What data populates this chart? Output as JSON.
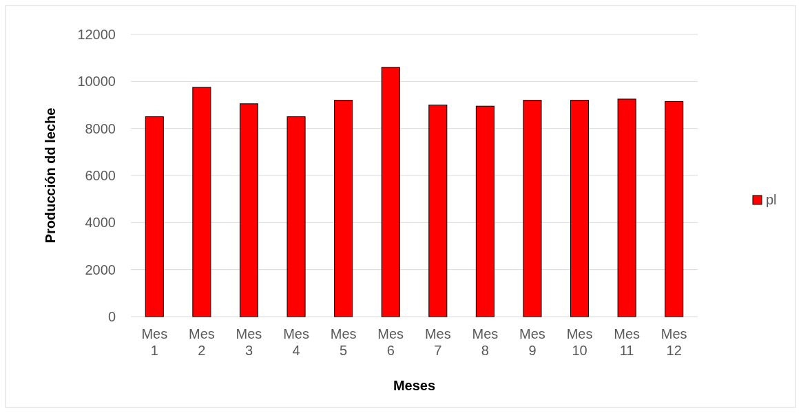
{
  "chart_data": {
    "type": "bar",
    "xlabel": "Meses",
    "ylabel": "Producción dd leche",
    "categories": [
      "Mes 1",
      "Mes 2",
      "Mes 3",
      "Mes 4",
      "Mes 5",
      "Mes 6",
      "Mes 7",
      "Mes 8",
      "Mes 9",
      "Mes 10",
      "Mes 11",
      "Mes 12"
    ],
    "series": [
      {
        "name": "pl",
        "color": "#ff0000",
        "values": [
          8500,
          9750,
          9050,
          8500,
          9200,
          10600,
          9000,
          8950,
          9200,
          9200,
          9250,
          9150
        ]
      }
    ],
    "ylim": [
      0,
      12000
    ],
    "yticks": [
      0,
      2000,
      4000,
      6000,
      8000,
      10000,
      12000
    ],
    "grid": "y",
    "legend": "right"
  }
}
